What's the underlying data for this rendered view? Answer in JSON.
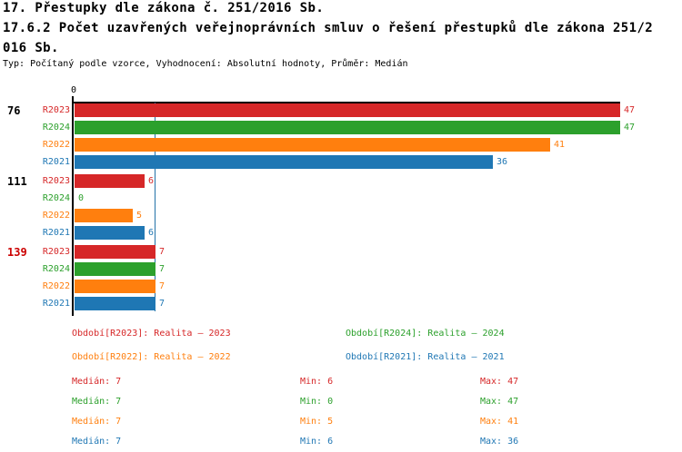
{
  "header": {
    "title_line1": "17. Přestupky dle zákona č. 251/2016 Sb.",
    "title_line2": "17.6.2 Počet uzavřených veřejnoprávních smluv o řešení přestupků dle zákona 251/2",
    "title_line3": "016 Sb.",
    "subtitle": "Typ: Počítaný podle vzorce, Vyhodnocení: Absolutní hodnoty, Průměr: Medián"
  },
  "colors": {
    "series": {
      "R2023": "#d62728",
      "R2024": "#2ca02c",
      "R2022": "#ff7f0e",
      "R2021": "#1f77b4"
    },
    "axis": "#000000",
    "median_line": "#2272a8",
    "group_label_default": "#000000",
    "group_label_highlight": "#cc0000",
    "title_text": "#000000"
  },
  "chart_data": {
    "type": "bar",
    "orientation": "horizontal",
    "title": "17.6.2 Počet uzavřených veřejnoprávních smluv o řešení přestupků dle zákona 251/2016 Sb.",
    "x_axis": {
      "tick_labels": [
        "0"
      ],
      "range": [
        0,
        47
      ]
    },
    "axis_tick_label": "0",
    "xmax": 47,
    "median_reference_value": 7,
    "series_order": [
      "R2023",
      "R2024",
      "R2022",
      "R2021"
    ],
    "groups": [
      {
        "label": "76",
        "highlight": false,
        "bars": [
          {
            "series": "R2023",
            "value": 47
          },
          {
            "series": "R2024",
            "value": 47
          },
          {
            "series": "R2022",
            "value": 41
          },
          {
            "series": "R2021",
            "value": 36
          }
        ]
      },
      {
        "label": "111",
        "highlight": false,
        "bars": [
          {
            "series": "R2023",
            "value": 6
          },
          {
            "series": "R2024",
            "value": 0
          },
          {
            "series": "R2022",
            "value": 5
          },
          {
            "series": "R2021",
            "value": 6
          }
        ]
      },
      {
        "label": "139",
        "highlight": true,
        "bars": [
          {
            "series": "R2023",
            "value": 7
          },
          {
            "series": "R2024",
            "value": 7
          },
          {
            "series": "R2022",
            "value": 7
          },
          {
            "series": "R2021",
            "value": 7
          }
        ]
      }
    ]
  },
  "legend": {
    "items": [
      {
        "series": "R2023",
        "text": "Období[R2023]: Realita – 2023"
      },
      {
        "series": "R2024",
        "text": "Období[R2024]: Realita – 2024"
      },
      {
        "series": "R2022",
        "text": "Období[R2022]: Realita – 2022"
      },
      {
        "series": "R2021",
        "text": "Období[R2021]: Realita – 2021"
      }
    ]
  },
  "stats": {
    "rows": [
      {
        "series": "R2023",
        "median": 7,
        "min": 6,
        "max": 47,
        "median_text": "Medián: 7",
        "min_text": "Min: 6",
        "max_text": "Max: 47"
      },
      {
        "series": "R2024",
        "median": 7,
        "min": 0,
        "max": 47,
        "median_text": "Medián: 7",
        "min_text": "Min: 0",
        "max_text": "Max: 47"
      },
      {
        "series": "R2022",
        "median": 7,
        "min": 5,
        "max": 41,
        "median_text": "Medián: 7",
        "min_text": "Min: 5",
        "max_text": "Max: 41"
      },
      {
        "series": "R2021",
        "median": 7,
        "min": 6,
        "max": 36,
        "median_text": "Medián: 7",
        "min_text": "Min: 6",
        "max_text": "Max: 36"
      }
    ]
  }
}
